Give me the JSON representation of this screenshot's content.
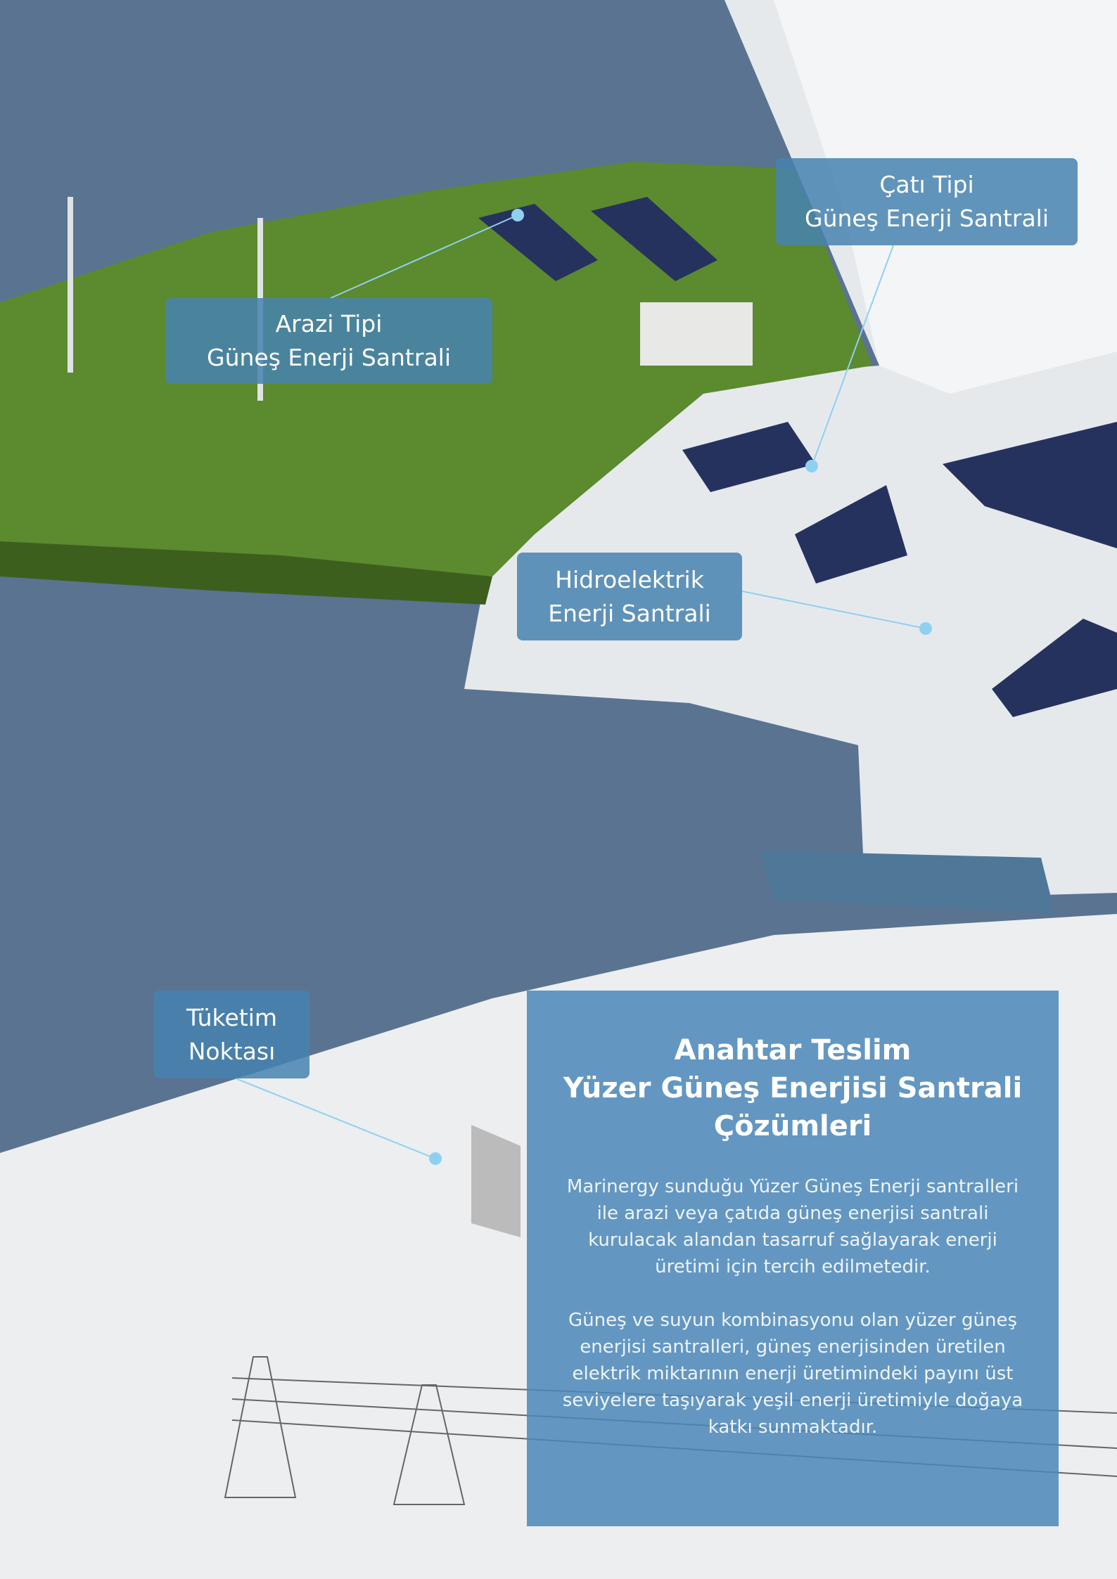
{
  "callouts": {
    "cati": {
      "line1": "Çatı Tipi",
      "line2": "Güneş Enerji Santrali"
    },
    "arazi": {
      "line1": "Arazi Tipi",
      "line2": "Güneş Enerji Santrali"
    },
    "hidro": {
      "line1": "Hidroelektrik",
      "line2": "Enerji Santrali"
    },
    "tuketim": {
      "line1": "Tüketim",
      "line2": "Noktası"
    }
  },
  "panel": {
    "title": [
      "Anahtar Teslim",
      "Yüzer Güneş Enerjisi Santrali",
      "Çözümleri"
    ],
    "paragraphs": [
      "Marinergy sunduğu Yüzer Güneş Enerji santralleri ile arazi veya çatıda güneş enerjisi santrali kurulacak alandan tasarruf sağlayarak enerji üretimi için tercih edilmetedir.",
      "Güneş ve suyun kombinasyonu olan yüzer güneş enerjisi santralleri, güneş enerjisinden üretilen elektrik miktarının enerji üretimindeki payını üst seviyelere taşıyarak yeşil enerji üretimiyle doğaya katkı sunmaktadır."
    ]
  }
}
